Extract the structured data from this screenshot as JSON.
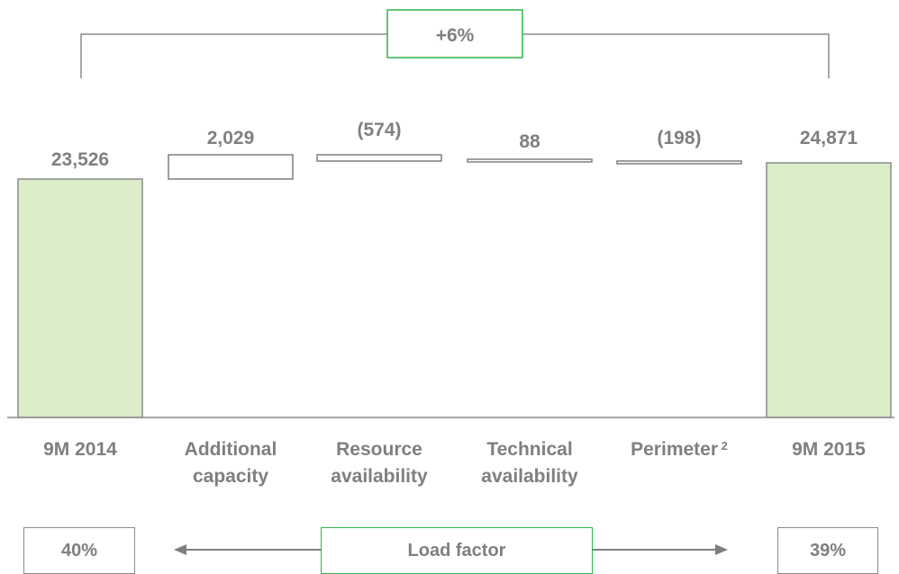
{
  "chart_data": {
    "type": "waterfall",
    "categories": [
      "9M 2014",
      "Additional capacity",
      "Resource availability",
      "Technical availability",
      "Perimeter",
      "9M 2015"
    ],
    "category_lines": [
      [
        "9M 2014"
      ],
      [
        "Additional",
        "capacity"
      ],
      [
        "Resource",
        "availability"
      ],
      [
        "Technical",
        "availability"
      ],
      [
        "Perimeter"
      ],
      [
        "9M 2015"
      ]
    ],
    "perimeter_footnote": "2",
    "values": [
      23526,
      2029,
      -574,
      88,
      -198,
      24871
    ],
    "value_labels": [
      "23,526",
      "2,029",
      "(574)",
      "88",
      "(198)",
      "24,871"
    ],
    "bar_kinds": [
      "total",
      "delta",
      "delta",
      "delta",
      "delta",
      "total"
    ],
    "change_label": "+6%",
    "colors": {
      "total_fill": "#dbedc9",
      "total_stroke": "#8c8c8c",
      "delta_stroke": "#7f7f7f",
      "accent": "#2db54a",
      "text": "#7f7f7f"
    }
  },
  "load_factor": {
    "label": "Load factor",
    "left": "40%",
    "right": "39%"
  }
}
